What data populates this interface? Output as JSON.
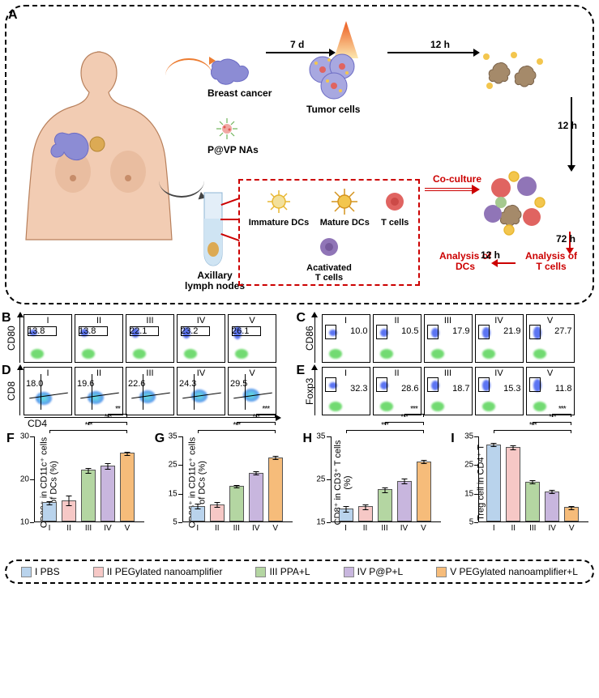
{
  "colors": {
    "group1": "#b9d3ec",
    "group2": "#f6c8c6",
    "group3": "#b4d6a2",
    "group4": "#c8b6de",
    "group5": "#f6bc7a",
    "skin": "#f2ccb3",
    "tumor_blue": "#8c8cd4",
    "tumor_blue_light": "#a8a8e0",
    "laser_orange": "#f4a031",
    "dc_yellow": "#f3c64e",
    "t_red": "#e06461",
    "t_purple": "#9075b7",
    "mac_brown": "#a58a6a",
    "na_red": "#e05a53",
    "na_green": "#6fb35b",
    "tube_blue": "#cfe4f3",
    "tube_blue_dk": "#e3eef8",
    "flow_bg": "#ffffff",
    "flow_blue": "#3f5cf0",
    "flow_green": "#4fd24f",
    "flow_cyan": "#48e0dc",
    "red_text": "#cc0000"
  },
  "panelA": {
    "label": "A",
    "bc": "Breast cancer",
    "pvp": "P@VP NAs",
    "axillary": "Axillary\nlymph nodes",
    "tumor": "Tumor cells",
    "d7": "7 d",
    "h12": "12 h",
    "h72": "72 h",
    "coculture": "Co-culture",
    "analysis_dc": "Analysis of\nDCs",
    "analysis_t": "Analysis of\nT cells",
    "legend": {
      "immature": "Immature DCs",
      "mature": "Mature DCs",
      "t": "T cells",
      "act_t": "Acativated\nT cells"
    }
  },
  "flow": {
    "romans": [
      "I",
      "II",
      "III",
      "IV",
      "V"
    ],
    "B": {
      "label": "B",
      "yaxis": "CD80",
      "vals": [
        "13.8",
        "13.8",
        "22.1",
        "23.2",
        "26.1"
      ],
      "val_pos": "top-left",
      "gate": "top"
    },
    "C": {
      "label": "C",
      "yaxis": "CD86",
      "vals": [
        "10.0",
        "10.5",
        "17.9",
        "21.9",
        "27.7"
      ],
      "val_pos": "top-right",
      "gate": "top-left"
    },
    "D": {
      "label": "D",
      "yaxis": "CD8",
      "xaxis": "CD4",
      "vals": [
        "18.0",
        "19.6",
        "22.6",
        "24.3",
        "29.5"
      ],
      "val_pos": "quad",
      "gate": "quadrant"
    },
    "E": {
      "label": "E",
      "yaxis": "Foxp3",
      "vals": [
        "32.3",
        "28.6",
        "18.7",
        "15.3",
        "11.8"
      ],
      "val_pos": "right",
      "gate": "top-left"
    }
  },
  "bars": {
    "F": {
      "label": "F",
      "ylabel": "CD80⁺ in CD11c⁺ cells\nof DCs (%)",
      "ymin": 10,
      "ymax": 30,
      "yticks": [
        10,
        20,
        30
      ],
      "values": [
        14.5,
        15.0,
        22.0,
        23.0,
        26.0
      ],
      "err": [
        0.5,
        1.2,
        0.6,
        0.7,
        0.5
      ],
      "sig": [
        [
          "I",
          "V",
          "***"
        ],
        [
          "III",
          "V",
          "***"
        ],
        [
          "IV",
          "V",
          "**"
        ]
      ]
    },
    "G": {
      "label": "G",
      "ylabel": "CD86⁺ in CD11c⁺ cells\nof DCs (%)",
      "ymin": 5,
      "ymax": 35,
      "yticks": [
        5,
        15,
        25,
        35
      ],
      "values": [
        10.5,
        11.0,
        17.5,
        22.0,
        27.5
      ],
      "err": [
        1.0,
        1.0,
        0.6,
        0.7,
        0.8
      ],
      "sig": [
        [
          "I",
          "V",
          "***"
        ],
        [
          "III",
          "V",
          "***"
        ],
        [
          "IV",
          "V",
          "***"
        ]
      ]
    },
    "H": {
      "label": "H",
      "ylabel": "CD8⁺ in CD3⁺ T cells\n(%)",
      "ymin": 15,
      "ymax": 35,
      "yticks": [
        15,
        25,
        35
      ],
      "values": [
        18.0,
        18.5,
        22.5,
        24.5,
        29.0
      ],
      "err": [
        0.7,
        0.7,
        0.7,
        0.6,
        0.5
      ],
      "sig": [
        [
          "I",
          "V",
          "***"
        ],
        [
          "III",
          "V",
          "***"
        ],
        [
          "IV",
          "V",
          "***"
        ]
      ]
    },
    "I": {
      "label": "I",
      "ylabel": "Treg cell in CD4⁺ T\ncells (%)",
      "ymin": 5,
      "ymax": 35,
      "yticks": [
        5,
        15,
        25,
        35
      ],
      "values": [
        32.0,
        31.0,
        19.0,
        15.5,
        10.0
      ],
      "err": [
        0.8,
        0.9,
        0.6,
        0.7,
        0.8
      ],
      "sig": [
        [
          "I",
          "V",
          "***"
        ],
        [
          "III",
          "V",
          "***"
        ],
        [
          "IV",
          "V",
          "***"
        ]
      ]
    }
  },
  "legend": {
    "g1": "I PBS",
    "g2": "II PEGylated nanoamplifier",
    "g3": "III PPA+L",
    "g4": "IV P@P+L",
    "g5": "V PEGylated nanoamplifier+L"
  }
}
